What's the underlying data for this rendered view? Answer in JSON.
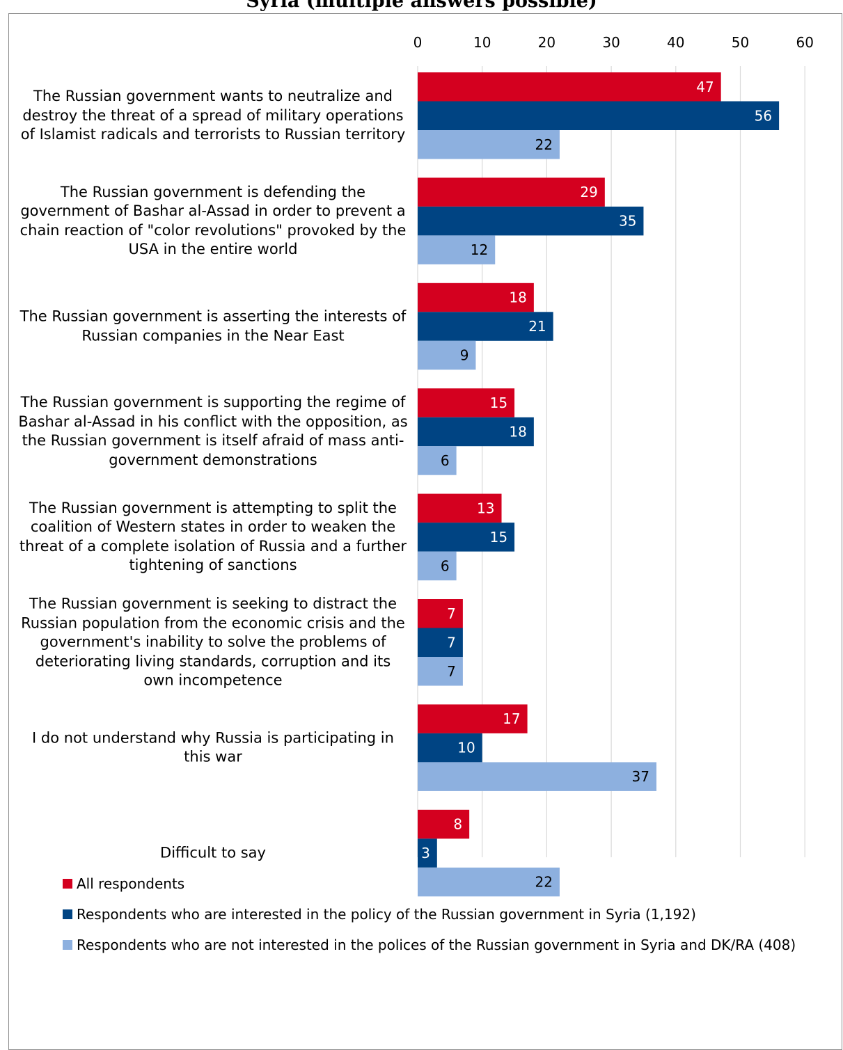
{
  "title_fragment": "Syria (multiple answers possible)",
  "chart_data": {
    "type": "bar",
    "orientation": "horizontal",
    "categories": [
      "The Russian government wants to neutralize and destroy the threat of a spread of military operations of Islamist radicals and terrorists to Russian territory",
      "The Russian government is defending the government of Bashar al-Assad in order to prevent a chain reaction of \"color revolutions\" provoked by the USA in the entire world",
      "The Russian government is asserting the interests of Russian companies in the Near East",
      "The Russian government is supporting the regime of Bashar al-Assad in his conflict with the opposition, as the Russian government is itself afraid of mass anti-government demonstrations",
      "The Russian government is attempting to split the coalition of Western states in order to weaken the threat of a complete isolation of Russia and a further tightening of sanctions",
      "The Russian government is seeking to distract the Russian population from the economic crisis and the government's inability to solve the problems of deteriorating living standards, corruption and its own incompetence",
      "I do not understand why Russia is participating in this war",
      "Difficult to say"
    ],
    "series": [
      {
        "name": "All respondents",
        "color": "#d4001f",
        "values": [
          47,
          29,
          18,
          15,
          13,
          7,
          17,
          8
        ]
      },
      {
        "name": "Respondents who are interested in the policy of the Russian government in Syria (1,192)",
        "color": "#004483",
        "values": [
          56,
          35,
          21,
          18,
          15,
          7,
          10,
          3
        ]
      },
      {
        "name": "Respondents who are not interested in the polices of the Russian government in Syria and DK/RA (408)",
        "color": "#8db0df",
        "values": [
          22,
          12,
          9,
          6,
          6,
          7,
          37,
          22
        ]
      }
    ],
    "xlim": [
      0,
      60
    ],
    "xticks": [
      0,
      10,
      20,
      30,
      40,
      50,
      60
    ],
    "x_axis_position": "top",
    "grid": true,
    "legend_position": "bottom-left",
    "data_labels": true
  }
}
